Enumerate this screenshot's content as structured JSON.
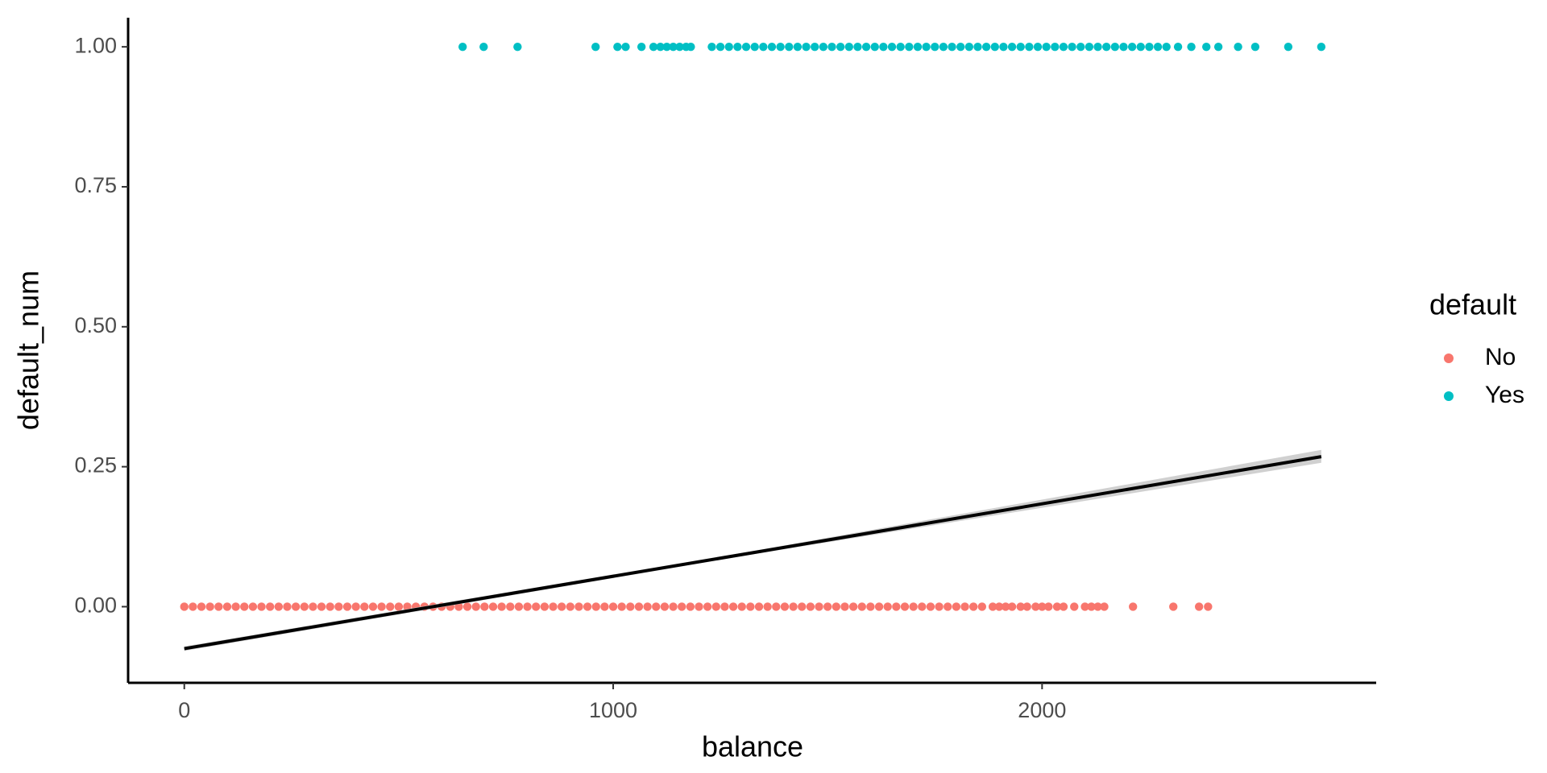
{
  "chart_data": {
    "type": "scatter",
    "x_label": "balance",
    "y_label": "default_num",
    "legend_title": "default",
    "xlim": [
      -131,
      2779
    ],
    "ylim": [
      -0.136,
      1.052
    ],
    "xticks": [
      0,
      1000,
      2000
    ],
    "yticks": [
      {
        "value": 0,
        "label": "0.00"
      },
      {
        "value": 0.25,
        "label": "0.25"
      },
      {
        "value": 0.5,
        "label": "0.50"
      },
      {
        "value": 0.75,
        "label": "0.75"
      },
      {
        "value": 1,
        "label": "1.00"
      }
    ],
    "legend_position": "right",
    "series": [
      {
        "name": "No",
        "color": "#f8766d",
        "x": [
          0,
          20,
          40,
          60,
          80,
          100,
          120,
          140,
          160,
          180,
          200,
          220,
          240,
          260,
          280,
          300,
          320,
          340,
          360,
          380,
          400,
          420,
          440,
          460,
          480,
          500,
          520,
          540,
          560,
          580,
          600,
          620,
          640,
          660,
          680,
          700,
          720,
          740,
          760,
          780,
          800,
          820,
          840,
          860,
          880,
          900,
          920,
          940,
          960,
          980,
          1000,
          1020,
          1040,
          1060,
          1080,
          1100,
          1120,
          1140,
          1160,
          1180,
          1200,
          1220,
          1240,
          1260,
          1280,
          1300,
          1320,
          1340,
          1360,
          1380,
          1400,
          1420,
          1440,
          1460,
          1480,
          1500,
          1520,
          1540,
          1560,
          1580,
          1600,
          1620,
          1640,
          1660,
          1680,
          1700,
          1720,
          1740,
          1760,
          1780,
          1800,
          1820,
          1840,
          1860,
          1885,
          1900,
          1915,
          1930,
          1950,
          1965,
          1985,
          2000,
          2015,
          2035,
          2050,
          2075,
          2100,
          2115,
          2130,
          2145,
          2212,
          2306,
          2366,
          2387
        ],
        "y": [
          0,
          0,
          0,
          0,
          0,
          0,
          0,
          0,
          0,
          0,
          0,
          0,
          0,
          0,
          0,
          0,
          0,
          0,
          0,
          0,
          0,
          0,
          0,
          0,
          0,
          0,
          0,
          0,
          0,
          0,
          0,
          0,
          0,
          0,
          0,
          0,
          0,
          0,
          0,
          0,
          0,
          0,
          0,
          0,
          0,
          0,
          0,
          0,
          0,
          0,
          0,
          0,
          0,
          0,
          0,
          0,
          0,
          0,
          0,
          0,
          0,
          0,
          0,
          0,
          0,
          0,
          0,
          0,
          0,
          0,
          0,
          0,
          0,
          0,
          0,
          0,
          0,
          0,
          0,
          0,
          0,
          0,
          0,
          0,
          0,
          0,
          0,
          0,
          0,
          0,
          0,
          0,
          0,
          0,
          0,
          0,
          0,
          0,
          0,
          0,
          0,
          0,
          0,
          0,
          0,
          0,
          0,
          0,
          0,
          0,
          0,
          0,
          0,
          0
        ]
      },
      {
        "name": "Yes",
        "color": "#00bfc4",
        "x": [
          649,
          698,
          777,
          959,
          1010,
          1029,
          1066,
          1094,
          1110,
          1125,
          1140,
          1155,
          1170,
          1181,
          1230,
          1250,
          1270,
          1290,
          1310,
          1330,
          1350,
          1370,
          1390,
          1410,
          1430,
          1450,
          1470,
          1490,
          1510,
          1530,
          1550,
          1570,
          1590,
          1610,
          1630,
          1650,
          1670,
          1690,
          1710,
          1730,
          1750,
          1770,
          1790,
          1810,
          1830,
          1850,
          1870,
          1890,
          1910,
          1930,
          1950,
          1970,
          1990,
          2010,
          2030,
          2050,
          2070,
          2090,
          2110,
          2130,
          2150,
          2170,
          2190,
          2210,
          2230,
          2250,
          2270,
          2290,
          2317,
          2348,
          2383,
          2411,
          2457,
          2497,
          2574,
          2651
        ],
        "y": [
          1,
          1,
          1,
          1,
          1,
          1,
          1,
          1,
          1,
          1,
          1,
          1,
          1,
          1,
          1,
          1,
          1,
          1,
          1,
          1,
          1,
          1,
          1,
          1,
          1,
          1,
          1,
          1,
          1,
          1,
          1,
          1,
          1,
          1,
          1,
          1,
          1,
          1,
          1,
          1,
          1,
          1,
          1,
          1,
          1,
          1,
          1,
          1,
          1,
          1,
          1,
          1,
          1,
          1,
          1,
          1,
          1,
          1,
          1,
          1,
          1,
          1,
          1,
          1,
          1,
          1,
          1,
          1,
          1,
          1,
          1,
          1,
          1,
          1,
          1,
          1
        ]
      }
    ],
    "fit": {
      "color": "#000000",
      "band_color": "#c8c8c8",
      "x": [
        0,
        1326,
        2651
      ],
      "y": [
        -0.075,
        0.0965,
        0.268
      ],
      "lower": [
        -0.079,
        0.0935,
        0.257
      ],
      "upper": [
        -0.071,
        0.0995,
        0.28
      ]
    }
  }
}
